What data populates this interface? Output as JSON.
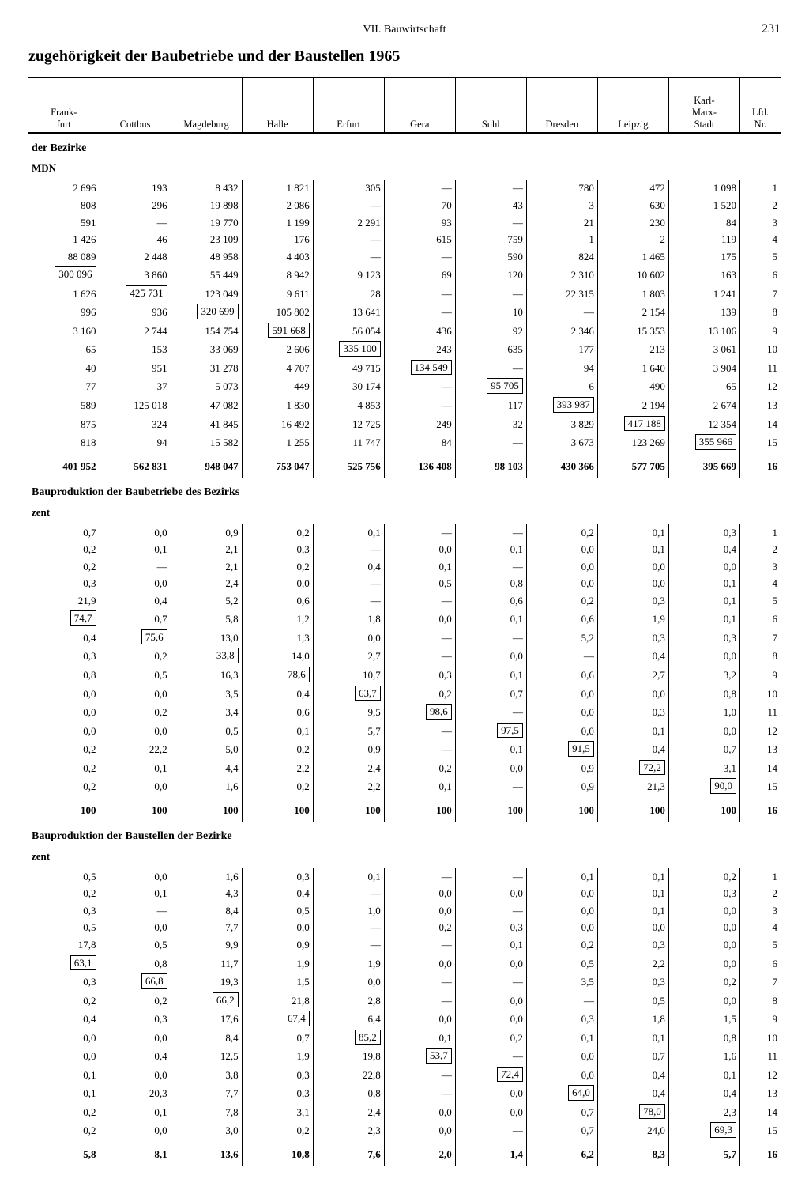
{
  "page": {
    "chapter": "VII. Bauwirtschaft",
    "number": "231",
    "title": "zugehörigkeit der Baubetriebe und der Baustellen 1965"
  },
  "columns": [
    "Frank-\nfurt",
    "Cottbus",
    "Magdeburg",
    "Halle",
    "Erfurt",
    "Gera",
    "Suhl",
    "Dresden",
    "Leipzig",
    "Karl-\nMarx-\nStadt",
    "Lfd.\nNr."
  ],
  "sections": [
    {
      "heading": "der Bezirke",
      "unit": "MDN",
      "boxed": {
        "0": [
          5
        ],
        "1": [
          6
        ],
        "2": [
          7
        ],
        "3": [
          8
        ],
        "4": [
          9
        ],
        "5": [
          10
        ],
        "6": [
          11
        ],
        "7": [
          12
        ],
        "8": [
          13
        ],
        "9": [
          14
        ]
      },
      "rows": [
        [
          "2 696",
          "193",
          "8 432",
          "1 821",
          "305",
          "—",
          "—",
          "780",
          "472",
          "1 098",
          "1"
        ],
        [
          "808",
          "296",
          "19 898",
          "2 086",
          "—",
          "70",
          "43",
          "3",
          "630",
          "1 520",
          "2"
        ],
        [
          "591",
          "—",
          "19 770",
          "1 199",
          "2 291",
          "93",
          "—",
          "21",
          "230",
          "84",
          "3"
        ],
        [
          "1 426",
          "46",
          "23 109",
          "176",
          "—",
          "615",
          "759",
          "1",
          "2",
          "119",
          "4"
        ],
        [
          "88 089",
          "2 448",
          "48 958",
          "4 403",
          "—",
          "—",
          "590",
          "824",
          "1 465",
          "175",
          "5"
        ],
        [
          "300 096",
          "3 860",
          "55 449",
          "8 942",
          "9 123",
          "69",
          "120",
          "2 310",
          "10 602",
          "163",
          "6"
        ],
        [
          "1 626",
          "425 731",
          "123 049",
          "9 611",
          "28",
          "—",
          "—",
          "22 315",
          "1 803",
          "1 241",
          "7"
        ],
        [
          "996",
          "936",
          "320 699",
          "105 802",
          "13 641",
          "—",
          "10",
          "—",
          "2 154",
          "139",
          "8"
        ],
        [
          "3 160",
          "2 744",
          "154 754",
          "591 668",
          "56 054",
          "436",
          "92",
          "2 346",
          "15 353",
          "13 106",
          "9"
        ],
        [
          "65",
          "153",
          "33 069",
          "2 606",
          "335 100",
          "243",
          "635",
          "177",
          "213",
          "3 061",
          "10"
        ],
        [
          "40",
          "951",
          "31 278",
          "4 707",
          "49 715",
          "134 549",
          "—",
          "94",
          "1 640",
          "3 904",
          "11"
        ],
        [
          "77",
          "37",
          "5 073",
          "449",
          "30 174",
          "—",
          "95 705",
          "6",
          "490",
          "65",
          "12"
        ],
        [
          "589",
          "125 018",
          "47 082",
          "1 830",
          "4 853",
          "—",
          "117",
          "393 987",
          "2 194",
          "2 674",
          "13"
        ],
        [
          "875",
          "324",
          "41 845",
          "16 492",
          "12 725",
          "249",
          "32",
          "3 829",
          "417 188",
          "12 354",
          "14"
        ],
        [
          "818",
          "94",
          "15 582",
          "1 255",
          "11 747",
          "84",
          "—",
          "3 673",
          "123 269",
          "355 966",
          "15"
        ]
      ],
      "total": [
        "401 952",
        "562 831",
        "948 047",
        "753 047",
        "525 756",
        "136 408",
        "98 103",
        "430 366",
        "577 705",
        "395 669",
        "16"
      ]
    },
    {
      "heading": "Bauproduktion der Baubetriebe des Bezirks",
      "unit": "zent",
      "boxed": {
        "0": [
          5
        ],
        "1": [
          6
        ],
        "2": [
          7
        ],
        "3": [
          8
        ],
        "4": [
          9
        ],
        "5": [
          10
        ],
        "6": [
          11
        ],
        "7": [
          12
        ],
        "8": [
          13
        ],
        "9": [
          14
        ]
      },
      "rows": [
        [
          "0,7",
          "0,0",
          "0,9",
          "0,2",
          "0,1",
          "—",
          "—",
          "0,2",
          "0,1",
          "0,3",
          "1"
        ],
        [
          "0,2",
          "0,1",
          "2,1",
          "0,3",
          "—",
          "0,0",
          "0,1",
          "0,0",
          "0,1",
          "0,4",
          "2"
        ],
        [
          "0,2",
          "—",
          "2,1",
          "0,2",
          "0,4",
          "0,1",
          "—",
          "0,0",
          "0,0",
          "0,0",
          "3"
        ],
        [
          "0,3",
          "0,0",
          "2,4",
          "0,0",
          "—",
          "0,5",
          "0,8",
          "0,0",
          "0,0",
          "0,1",
          "4"
        ],
        [
          "21,9",
          "0,4",
          "5,2",
          "0,6",
          "—",
          "—",
          "0,6",
          "0,2",
          "0,3",
          "0,1",
          "5"
        ],
        [
          "74,7",
          "0,7",
          "5,8",
          "1,2",
          "1,8",
          "0,0",
          "0,1",
          "0,6",
          "1,9",
          "0,1",
          "6"
        ],
        [
          "0,4",
          "75,6",
          "13,0",
          "1,3",
          "0,0",
          "—",
          "—",
          "5,2",
          "0,3",
          "0,3",
          "7"
        ],
        [
          "0,3",
          "0,2",
          "33,8",
          "14,0",
          "2,7",
          "—",
          "0,0",
          "—",
          "0,4",
          "0,0",
          "8"
        ],
        [
          "0,8",
          "0,5",
          "16,3",
          "78,6",
          "10,7",
          "0,3",
          "0,1",
          "0,6",
          "2,7",
          "3,2",
          "9"
        ],
        [
          "0,0",
          "0,0",
          "3,5",
          "0,4",
          "63,7",
          "0,2",
          "0,7",
          "0,0",
          "0,0",
          "0,8",
          "10"
        ],
        [
          "0,0",
          "0,2",
          "3,4",
          "0,6",
          "9,5",
          "98,6",
          "—",
          "0,0",
          "0,3",
          "1,0",
          "11"
        ],
        [
          "0,0",
          "0,0",
          "0,5",
          "0,1",
          "5,7",
          "—",
          "97,5",
          "0,0",
          "0,1",
          "0,0",
          "12"
        ],
        [
          "0,2",
          "22,2",
          "5,0",
          "0,2",
          "0,9",
          "—",
          "0,1",
          "91,5",
          "0,4",
          "0,7",
          "13"
        ],
        [
          "0,2",
          "0,1",
          "4,4",
          "2,2",
          "2,4",
          "0,2",
          "0,0",
          "0,9",
          "72,2",
          "3,1",
          "14"
        ],
        [
          "0,2",
          "0,0",
          "1,6",
          "0,2",
          "2,2",
          "0,1",
          "—",
          "0,9",
          "21,3",
          "90,0",
          "15"
        ]
      ],
      "total": [
        "100",
        "100",
        "100",
        "100",
        "100",
        "100",
        "100",
        "100",
        "100",
        "100",
        "16"
      ]
    },
    {
      "heading": "Bauproduktion der Baustellen der Bezirke",
      "unit": "zent",
      "boxed": {
        "0": [
          5
        ],
        "1": [
          6
        ],
        "2": [
          7
        ],
        "3": [
          8
        ],
        "4": [
          9
        ],
        "5": [
          10
        ],
        "6": [
          11
        ],
        "7": [
          12
        ],
        "8": [
          13
        ],
        "9": [
          14
        ]
      },
      "rows": [
        [
          "0,5",
          "0,0",
          "1,6",
          "0,3",
          "0,1",
          "—",
          "—",
          "0,1",
          "0,1",
          "0,2",
          "1"
        ],
        [
          "0,2",
          "0,1",
          "4,3",
          "0,4",
          "—",
          "0,0",
          "0,0",
          "0,0",
          "0,1",
          "0,3",
          "2"
        ],
        [
          "0,3",
          "—",
          "8,4",
          "0,5",
          "1,0",
          "0,0",
          "—",
          "0,0",
          "0,1",
          "0,0",
          "3"
        ],
        [
          "0,5",
          "0,0",
          "7,7",
          "0,0",
          "—",
          "0,2",
          "0,3",
          "0,0",
          "0,0",
          "0,0",
          "4"
        ],
        [
          "17,8",
          "0,5",
          "9,9",
          "0,9",
          "—",
          "—",
          "0,1",
          "0,2",
          "0,3",
          "0,0",
          "5"
        ],
        [
          "63,1",
          "0,8",
          "11,7",
          "1,9",
          "1,9",
          "0,0",
          "0,0",
          "0,5",
          "2,2",
          "0,0",
          "6"
        ],
        [
          "0,3",
          "66,8",
          "19,3",
          "1,5",
          "0,0",
          "—",
          "—",
          "3,5",
          "0,3",
          "0,2",
          "7"
        ],
        [
          "0,2",
          "0,2",
          "66,2",
          "21,8",
          "2,8",
          "—",
          "0,0",
          "—",
          "0,5",
          "0,0",
          "8"
        ],
        [
          "0,4",
          "0,3",
          "17,6",
          "67,4",
          "6,4",
          "0,0",
          "0,0",
          "0,3",
          "1,8",
          "1,5",
          "9"
        ],
        [
          "0,0",
          "0,0",
          "8,4",
          "0,7",
          "85,2",
          "0,1",
          "0,2",
          "0,1",
          "0,1",
          "0,8",
          "10"
        ],
        [
          "0,0",
          "0,4",
          "12,5",
          "1,9",
          "19,8",
          "53,7",
          "—",
          "0,0",
          "0,7",
          "1,6",
          "11"
        ],
        [
          "0,1",
          "0,0",
          "3,8",
          "0,3",
          "22,8",
          "—",
          "72,4",
          "0,0",
          "0,4",
          "0,1",
          "12"
        ],
        [
          "0,1",
          "20,3",
          "7,7",
          "0,3",
          "0,8",
          "—",
          "0,0",
          "64,0",
          "0,4",
          "0,4",
          "13"
        ],
        [
          "0,2",
          "0,1",
          "7,8",
          "3,1",
          "2,4",
          "0,0",
          "0,0",
          "0,7",
          "78,0",
          "2,3",
          "14"
        ],
        [
          "0,2",
          "0,0",
          "3,0",
          "0,2",
          "2,3",
          "0,0",
          "—",
          "0,7",
          "24,0",
          "69,3",
          "15"
        ]
      ],
      "total": [
        "5,8",
        "8,1",
        "13,6",
        "10,8",
        "7,6",
        "2,0",
        "1,4",
        "6,2",
        "8,3",
        "5,7",
        "16"
      ]
    }
  ]
}
